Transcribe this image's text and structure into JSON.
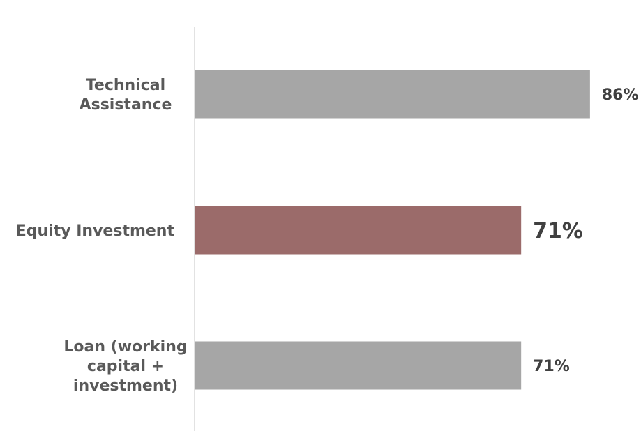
{
  "chart_data": {
    "type": "bar",
    "orientation": "horizontal",
    "categories": [
      [
        "Technical",
        "Assistance"
      ],
      [
        "Equity Investment"
      ],
      [
        "Loan (working",
        "capital +",
        "investment)"
      ]
    ],
    "values": [
      86,
      71,
      71
    ],
    "value_labels": [
      "86%",
      "71%",
      "71%"
    ],
    "unit": "%",
    "xlim": [
      0,
      100
    ],
    "grid": false,
    "legend": "none",
    "bar_colors": [
      "#a6a6a6",
      "#9b6b6a",
      "#a6a6a6"
    ],
    "value_label_colors": [
      "#404040",
      "#9b6b6a",
      "#404040"
    ],
    "highlighted_index": 1
  }
}
